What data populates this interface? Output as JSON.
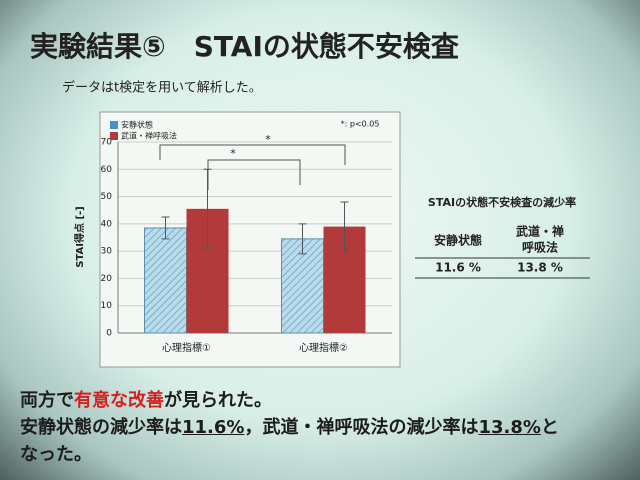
{
  "slide": {
    "title": "実験結果⑤　STAIの状態不安検査",
    "subtitle": "データはt検定を用いて解析した。"
  },
  "chart_data": {
    "type": "bar",
    "ylabel": "STAI得点 [-]",
    "categories": [
      "心理指標①",
      "心理指標②"
    ],
    "series": [
      {
        "name": "安静状態",
        "color": "#b8dcec",
        "hatch": true,
        "values": [
          38.5,
          34.5
        ],
        "errors": [
          4,
          5.5
        ]
      },
      {
        "name": "武道・禅呼吸法",
        "color": "#b23a3a",
        "hatch": false,
        "values": [
          45.5,
          39
        ],
        "errors": [
          14.5,
          9
        ]
      }
    ],
    "ylim": [
      0,
      70
    ],
    "yticks": [
      0,
      10,
      20,
      30,
      40,
      50,
      60,
      70
    ],
    "grid": true,
    "legend": "upper left",
    "annotations": [
      "*: p<0.05",
      "*",
      "*"
    ]
  },
  "table": {
    "title": "STAIの状態不安検査の減少率",
    "headers": [
      "安静状態",
      [
        "武道・禅",
        "呼吸法"
      ]
    ],
    "rows": [
      [
        "11.6 %",
        "13.8 %"
      ]
    ]
  },
  "conclusion": {
    "line1": [
      "両方で",
      "有意な改善",
      "が見られた。"
    ],
    "line2": [
      "安静状態の減少率は",
      "11.6%",
      "，武道・禅呼吸法の減少率は",
      "13.8%",
      "と"
    ],
    "line3": "なった。"
  }
}
